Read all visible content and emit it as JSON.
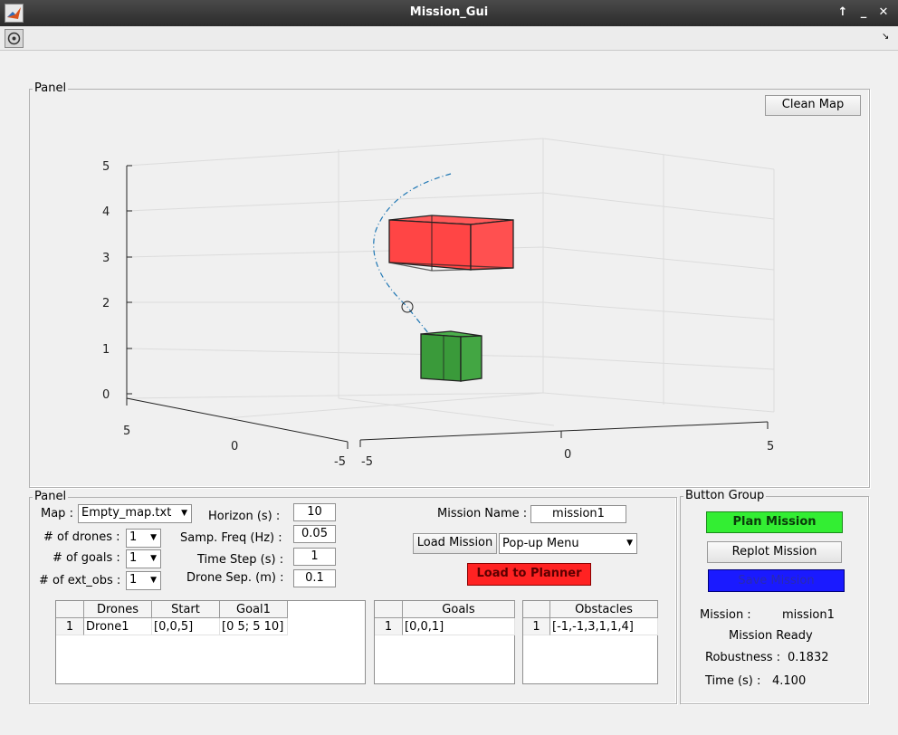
{
  "window": {
    "title": "Mission_Gui",
    "icon": "matlab-icon"
  },
  "toolbar": {
    "rotate_icon": "rotate-3d-icon"
  },
  "axes_panel": {
    "title": "Panel",
    "clean_map_label": "Clean Map"
  },
  "chart_data": {
    "type": "scatter",
    "z_ticks": [
      "0",
      "1",
      "2",
      "3",
      "4",
      "5"
    ],
    "x_ticks": [
      "-5",
      "0",
      "5"
    ],
    "y_ticks": [
      "5",
      "0",
      "-5"
    ],
    "zlim": [
      0,
      5
    ],
    "grid": true,
    "objects": [
      {
        "name": "",
        "color": "#ff4545",
        "kind": "box"
      },
      {
        "name": "",
        "color": "#3a9a3a",
        "kind": "box"
      }
    ],
    "series": [
      {
        "name": "",
        "kind": "trajectory",
        "color": "#1f77b4",
        "style": "dash-dot"
      }
    ]
  },
  "config_panel": {
    "title": "Panel",
    "map_label": "Map :",
    "map_value": "Empty_map.txt",
    "drones_label": "# of drones :",
    "drones_value": "1",
    "goals_label": "# of goals :",
    "goals_value": "1",
    "obs_label": "# of ext_obs :",
    "obs_value": "1",
    "horizon_label": "Horizon (s) :",
    "horizon_value": "10",
    "freq_label": "Samp. Freq (Hz) :",
    "freq_value": "0.05",
    "step_label": "Time Step (s) :",
    "step_value": "1",
    "sep_label": "Drone Sep. (m) :",
    "sep_value": "0.1",
    "mission_name_label": "Mission Name :",
    "mission_name_value": "mission1",
    "load_mission_label": "Load Mission",
    "popup_value": "Pop-up Menu",
    "load_planner_label": "Load to Planner"
  },
  "drones_table": {
    "headers": [
      "Drones",
      "Start",
      "Goal1"
    ],
    "rows": [
      {
        "index": "1",
        "cells": [
          "Drone1",
          "[0,0,5]",
          "[0 5; 5 10]"
        ]
      }
    ]
  },
  "goals_table": {
    "headers": [
      "Goals"
    ],
    "rows": [
      {
        "index": "1",
        "cells": [
          "[0,0,1]"
        ]
      }
    ]
  },
  "obstacles_table": {
    "headers": [
      "Obstacles"
    ],
    "rows": [
      {
        "index": "1",
        "cells": [
          "[-1,-1,3,1,1,4]"
        ]
      }
    ]
  },
  "button_group": {
    "title": "Button Group",
    "plan_label": "Plan Mission",
    "replot_label": "Replot Mission",
    "save_label": "Save Mission",
    "mission_label": "Mission :",
    "mission_value": "mission1",
    "status": "Mission Ready",
    "robustness_label": "Robustness :",
    "robustness_value": "0.1832",
    "time_label": "Time (s) :",
    "time_value": "4.100"
  },
  "colors": {
    "plan_button": "#33ee33",
    "save_button": "#1a1aff",
    "load_planner_button": "#ff2222"
  }
}
